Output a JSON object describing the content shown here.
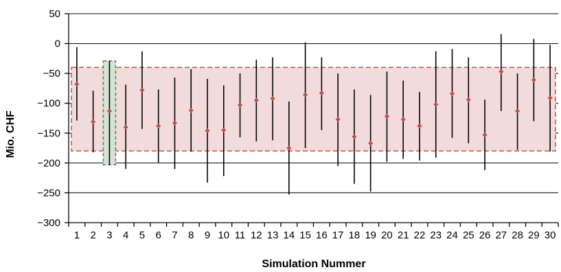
{
  "chart_data": {
    "type": "scatter",
    "subtype": "point-with-error-bars",
    "title": "",
    "xlabel": "Simulation Nummer",
    "ylabel": "Mio. CHF",
    "ylim": [
      -300,
      50
    ],
    "y_ticks": [
      50,
      0,
      -50,
      -100,
      -150,
      -200,
      -250,
      -300
    ],
    "y_tick_labels": [
      "50",
      "0",
      "−50",
      "−100",
      "−150",
      "−200",
      "−250",
      "−300"
    ],
    "x": [
      1,
      2,
      3,
      4,
      5,
      6,
      7,
      8,
      9,
      10,
      11,
      12,
      13,
      14,
      15,
      16,
      17,
      18,
      19,
      20,
      21,
      22,
      23,
      24,
      25,
      26,
      27,
      28,
      29,
      30
    ],
    "x_tick_labels": [
      "1",
      "2",
      "3",
      "4",
      "5",
      "6",
      "7",
      "8",
      "9",
      "10",
      "11",
      "12",
      "13",
      "14",
      "15",
      "16",
      "17",
      "18",
      "19",
      "20",
      "21",
      "22",
      "23",
      "24",
      "25",
      "26",
      "27",
      "28",
      "29",
      "30"
    ],
    "xlim": [
      0.5,
      30.5
    ],
    "grid": "horizontal",
    "series": [
      {
        "values": [
          -68,
          -131,
          -113,
          -140,
          -78,
          -138,
          -133,
          -112,
          -146,
          -145,
          -103,
          -95,
          -92,
          -175,
          -86,
          -83,
          -127,
          -156,
          -167,
          -122,
          -127,
          -138,
          -102,
          -84,
          -94,
          -153,
          -47,
          -113,
          -61,
          -91
        ],
        "low": [
          -129,
          -182,
          -203,
          -210,
          -143,
          -199,
          -210,
          -181,
          -233,
          -222,
          -157,
          -164,
          -162,
          -253,
          -175,
          -145,
          -205,
          -235,
          -248,
          -198,
          -193,
          -196,
          -191,
          -158,
          -167,
          -212,
          -113,
          -178,
          -130,
          -181
        ],
        "high": [
          -6,
          -79,
          -29,
          -69,
          -13,
          -77,
          -57,
          -43,
          -59,
          -70,
          -50,
          -27,
          -23,
          -97,
          2,
          -23,
          -50,
          -77,
          -86,
          -47,
          -62,
          -81,
          -13,
          -9,
          -23,
          -94,
          16,
          -50,
          8,
          -2
        ],
        "marker_color": "#c0504d",
        "bar_color": "#000000"
      }
    ],
    "shaded_band": {
      "y_range": [
        -180,
        -40
      ],
      "fill": "#f2dcdb",
      "border": "#c0504d",
      "style": "dashed"
    },
    "highlight_column": {
      "x": 3,
      "y_range": [
        -203,
        -29
      ],
      "fill": "#d6e3d4",
      "border": "#4f8a4f",
      "style": "dashed"
    }
  }
}
